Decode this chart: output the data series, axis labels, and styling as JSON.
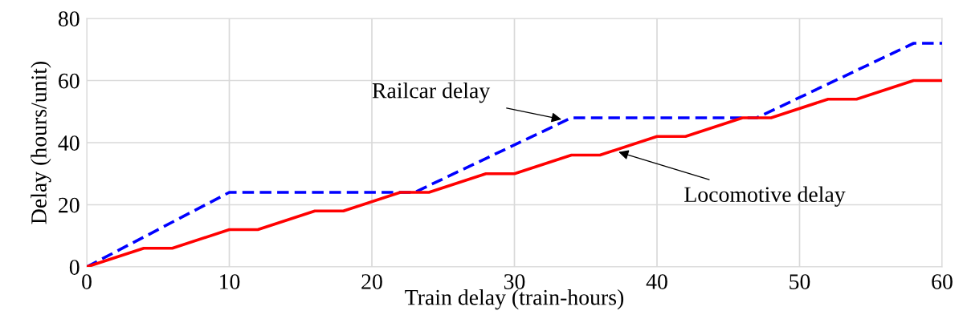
{
  "chart_data": {
    "type": "line",
    "xlabel": "Train delay (train-hours)",
    "ylabel": "Delay (hours/unit)",
    "xlim": [
      0,
      60
    ],
    "xticks": [
      0,
      10,
      20,
      30,
      40,
      50,
      60
    ],
    "ylim": [
      0,
      80
    ],
    "yticks": [
      0,
      20,
      40,
      60,
      80
    ],
    "grid": true,
    "marker": "none",
    "series": [
      {
        "color": "#0000ff",
        "line_style": "dashed",
        "x": [
          0,
          10,
          23,
          34,
          47,
          58,
          60
        ],
        "values": [
          0,
          24,
          24,
          48,
          48,
          72,
          72
        ]
      },
      {
        "color": "#ff0000",
        "line_style": "solid",
        "x": [
          0,
          4,
          6,
          10,
          12,
          16,
          18,
          22,
          24,
          28,
          30,
          34,
          36,
          40,
          42,
          46,
          48,
          52,
          54,
          58,
          60
        ],
        "values": [
          0,
          6,
          6,
          12,
          12,
          18,
          18,
          24,
          24,
          30,
          30,
          36,
          36,
          42,
          42,
          48,
          48,
          54,
          54,
          60,
          60
        ]
      }
    ],
    "annotations": [
      {
        "text": "Railcar delay",
        "x": 33.3,
        "y": 47.5
      },
      {
        "text": "Locomotive delay",
        "x": 37.3,
        "y": 37
      }
    ]
  }
}
